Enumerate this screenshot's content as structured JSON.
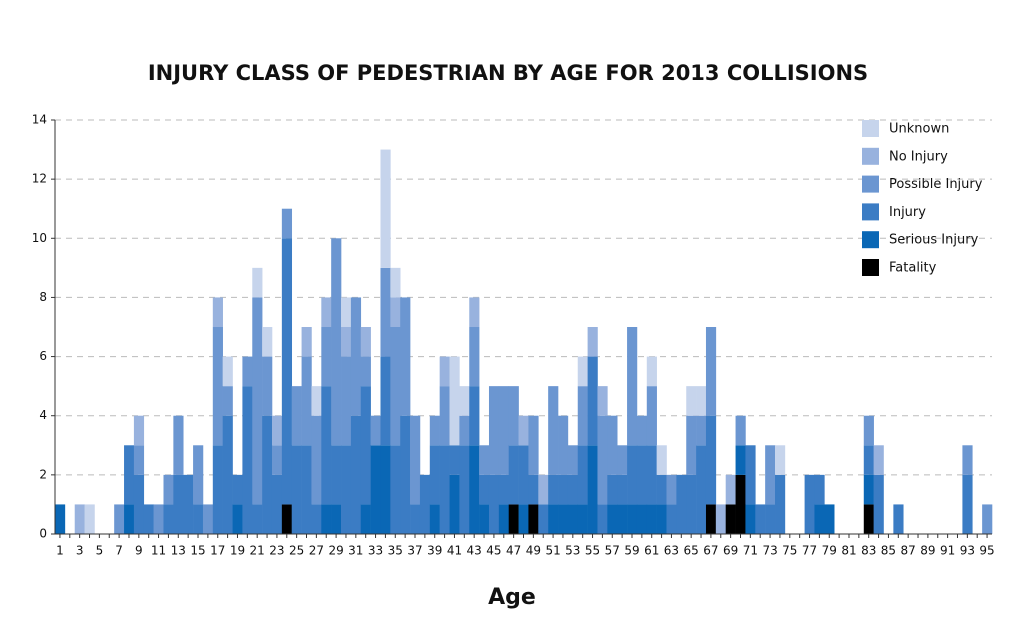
{
  "chart_data": {
    "type": "stacked_bar",
    "title": "INJURY CLASS OF PEDESTRIAN BY AGE FOR 2013 COLLISIONS",
    "x_label": "Age",
    "categories": [
      1,
      null,
      3,
      null,
      5,
      null,
      7,
      null,
      9,
      null,
      11,
      null,
      13,
      null,
      15,
      null,
      17,
      null,
      19,
      null,
      21,
      null,
      23,
      null,
      25,
      null,
      27,
      null,
      29,
      null,
      31,
      null,
      33,
      null,
      35,
      null,
      37,
      null,
      39,
      null,
      41,
      null,
      43,
      null,
      45,
      null,
      47,
      null,
      49,
      null,
      51,
      null,
      53,
      null,
      55,
      null,
      57,
      null,
      59,
      null,
      61,
      null,
      63,
      null,
      65,
      null,
      67,
      null,
      69,
      null,
      71,
      null,
      73,
      null,
      75,
      null,
      77,
      null,
      79,
      null,
      81,
      null,
      83,
      null,
      85,
      null,
      87,
      null,
      89,
      null,
      91,
      null,
      93,
      null,
      95
    ],
    "ylim": [
      0,
      14
    ],
    "yticks": [
      0,
      2,
      4,
      6,
      8,
      10,
      12,
      14
    ],
    "grid": true,
    "legend": "top-right",
    "series": [
      {
        "name": "Unknown",
        "color": "#c6d4ec",
        "values": [
          0,
          0,
          0,
          1,
          0,
          0,
          0,
          0,
          0,
          0,
          0,
          0,
          0,
          0,
          0,
          0,
          0,
          1,
          0,
          0,
          1,
          1,
          0,
          0,
          0,
          0,
          1,
          0,
          0,
          1,
          0,
          0,
          0,
          4,
          1,
          0,
          0,
          0,
          0,
          0,
          3,
          1,
          0,
          0,
          0,
          0,
          0,
          0,
          0,
          0,
          0,
          0,
          0,
          1,
          0,
          0,
          0,
          0,
          0,
          0,
          1,
          1,
          0,
          0,
          1,
          1,
          0,
          0,
          0,
          0,
          0,
          0,
          0,
          1,
          0,
          0,
          0,
          0,
          0,
          0,
          0,
          0,
          0,
          0,
          0,
          0,
          0,
          0,
          0,
          0,
          0,
          0,
          0,
          0,
          0
        ]
      },
      {
        "name": "No Injury",
        "color": "#98b2de",
        "values": [
          0,
          0,
          1,
          0,
          0,
          0,
          0,
          0,
          1,
          0,
          0,
          0,
          0,
          0,
          0,
          0,
          1,
          0,
          0,
          0,
          0,
          0,
          1,
          0,
          0,
          1,
          0,
          1,
          0,
          1,
          0,
          1,
          0,
          0,
          1,
          0,
          0,
          0,
          0,
          1,
          0,
          0,
          1,
          0,
          0,
          0,
          0,
          1,
          0,
          1,
          0,
          0,
          0,
          0,
          1,
          1,
          0,
          0,
          0,
          0,
          0,
          0,
          0,
          0,
          0,
          0,
          0,
          1,
          1,
          0,
          0,
          0,
          0,
          0,
          0,
          0,
          0,
          0,
          0,
          0,
          0,
          0,
          0,
          1,
          0,
          0,
          0,
          0,
          0,
          0,
          0,
          0,
          0,
          0,
          0
        ]
      },
      {
        "name": "Possible Injury",
        "color": "#6b96d1",
        "values": [
          0,
          0,
          0,
          0,
          0,
          0,
          1,
          0,
          1,
          0,
          1,
          1,
          2,
          0,
          2,
          1,
          4,
          1,
          0,
          1,
          7,
          2,
          1,
          1,
          2,
          3,
          3,
          2,
          7,
          3,
          4,
          1,
          1,
          3,
          4,
          4,
          3,
          0,
          1,
          2,
          0,
          1,
          2,
          1,
          3,
          3,
          2,
          0,
          2,
          0,
          3,
          2,
          1,
          2,
          0,
          3,
          2,
          1,
          4,
          1,
          2,
          0,
          1,
          0,
          2,
          1,
          3,
          0,
          0,
          1,
          0,
          0,
          2,
          0,
          0,
          0,
          0,
          0,
          0,
          0,
          0,
          0,
          1,
          0,
          0,
          0,
          0,
          0,
          0,
          0,
          0,
          0,
          1,
          0,
          1
        ]
      },
      {
        "name": "Injury",
        "color": "#3b7cc4",
        "values": [
          0,
          0,
          0,
          0,
          0,
          0,
          0,
          2,
          2,
          1,
          0,
          1,
          2,
          2,
          1,
          0,
          3,
          4,
          1,
          5,
          1,
          4,
          2,
          9,
          3,
          3,
          1,
          4,
          2,
          3,
          4,
          4,
          0,
          3,
          3,
          4,
          1,
          2,
          2,
          3,
          1,
          3,
          2,
          1,
          2,
          1,
          2,
          2,
          1,
          1,
          1,
          1,
          1,
          2,
          3,
          1,
          1,
          1,
          2,
          2,
          2,
          1,
          1,
          2,
          2,
          3,
          3,
          0,
          0,
          0,
          2,
          1,
          1,
          2,
          0,
          0,
          2,
          1,
          0,
          0,
          0,
          0,
          1,
          2,
          0,
          1,
          0,
          0,
          0,
          0,
          0,
          0,
          2,
          0,
          0
        ]
      },
      {
        "name": "Serious Injury",
        "color": "#0a67b5",
        "values": [
          1,
          0,
          0,
          0,
          0,
          0,
          0,
          1,
          0,
          0,
          0,
          0,
          0,
          0,
          0,
          0,
          0,
          0,
          1,
          0,
          0,
          0,
          0,
          0,
          0,
          0,
          0,
          1,
          1,
          0,
          0,
          1,
          3,
          3,
          0,
          0,
          0,
          0,
          1,
          0,
          2,
          0,
          3,
          1,
          0,
          1,
          0,
          1,
          0,
          0,
          1,
          1,
          1,
          1,
          3,
          0,
          1,
          1,
          1,
          1,
          1,
          1,
          0,
          0,
          0,
          0,
          0,
          0,
          0,
          1,
          1,
          0,
          0,
          0,
          0,
          0,
          0,
          1,
          1,
          0,
          0,
          0,
          1,
          0,
          0,
          0,
          0,
          0,
          0,
          0,
          0,
          0,
          0,
          0,
          0
        ]
      },
      {
        "name": "Fatality",
        "color": "#000000",
        "values": [
          0,
          0,
          0,
          0,
          0,
          0,
          0,
          0,
          0,
          0,
          0,
          0,
          0,
          0,
          0,
          0,
          0,
          0,
          0,
          0,
          0,
          0,
          0,
          1,
          0,
          0,
          0,
          0,
          0,
          0,
          0,
          0,
          0,
          0,
          0,
          0,
          0,
          0,
          0,
          0,
          0,
          0,
          0,
          0,
          0,
          0,
          1,
          0,
          1,
          0,
          0,
          0,
          0,
          0,
          0,
          0,
          0,
          0,
          0,
          0,
          0,
          0,
          0,
          0,
          0,
          0,
          1,
          0,
          1,
          2,
          0,
          0,
          0,
          0,
          0,
          0,
          0,
          0,
          0,
          0,
          0,
          0,
          1,
          0,
          0,
          0,
          0,
          0,
          0,
          0,
          0,
          0,
          0,
          0,
          0
        ]
      }
    ]
  }
}
